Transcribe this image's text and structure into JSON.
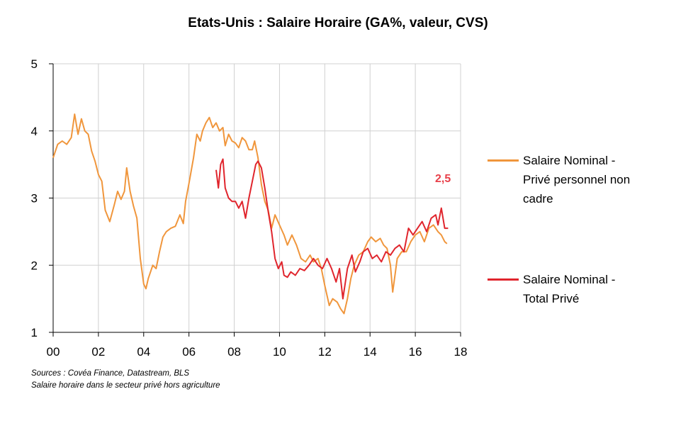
{
  "chart_data": {
    "type": "line",
    "title": "Etats-Unis : Salaire Horaire (GA%, valeur, CVS)",
    "xlabel": "",
    "ylabel": "",
    "xlim": [
      2000,
      2018
    ],
    "ylim": [
      1,
      5
    ],
    "x_ticks": [
      "00",
      "02",
      "04",
      "06",
      "08",
      "10",
      "12",
      "14",
      "16",
      "18"
    ],
    "y_ticks": [
      "1",
      "2",
      "3",
      "4",
      "5"
    ],
    "grid": true,
    "legend_position": "right",
    "annotation": {
      "text": "2,5",
      "color": "#e8404a"
    },
    "series": [
      {
        "name": "Salaire Nominal - Privé personnel non cadre",
        "color": "#f0963c",
        "points": [
          [
            2000.0,
            3.6
          ],
          [
            2000.2,
            3.8
          ],
          [
            2000.4,
            3.85
          ],
          [
            2000.6,
            3.8
          ],
          [
            2000.8,
            3.9
          ],
          [
            2000.95,
            4.25
          ],
          [
            2001.1,
            3.95
          ],
          [
            2001.25,
            4.18
          ],
          [
            2001.4,
            4.0
          ],
          [
            2001.55,
            3.95
          ],
          [
            2001.7,
            3.7
          ],
          [
            2001.85,
            3.55
          ],
          [
            2002.0,
            3.35
          ],
          [
            2002.15,
            3.25
          ],
          [
            2002.3,
            2.82
          ],
          [
            2002.5,
            2.65
          ],
          [
            2002.7,
            2.9
          ],
          [
            2002.85,
            3.1
          ],
          [
            2003.0,
            2.98
          ],
          [
            2003.15,
            3.1
          ],
          [
            2003.25,
            3.45
          ],
          [
            2003.4,
            3.1
          ],
          [
            2003.55,
            2.88
          ],
          [
            2003.7,
            2.7
          ],
          [
            2003.85,
            2.1
          ],
          [
            2004.0,
            1.72
          ],
          [
            2004.1,
            1.65
          ],
          [
            2004.2,
            1.8
          ],
          [
            2004.4,
            2.0
          ],
          [
            2004.55,
            1.95
          ],
          [
            2004.7,
            2.2
          ],
          [
            2004.85,
            2.42
          ],
          [
            2005.0,
            2.5
          ],
          [
            2005.2,
            2.55
          ],
          [
            2005.4,
            2.58
          ],
          [
            2005.6,
            2.75
          ],
          [
            2005.75,
            2.62
          ],
          [
            2005.85,
            2.95
          ],
          [
            2006.0,
            3.22
          ],
          [
            2006.2,
            3.6
          ],
          [
            2006.35,
            3.95
          ],
          [
            2006.5,
            3.85
          ],
          [
            2006.6,
            4.0
          ],
          [
            2006.75,
            4.12
          ],
          [
            2006.9,
            4.2
          ],
          [
            2007.05,
            4.05
          ],
          [
            2007.2,
            4.12
          ],
          [
            2007.35,
            4.0
          ],
          [
            2007.5,
            4.05
          ],
          [
            2007.6,
            3.78
          ],
          [
            2007.75,
            3.95
          ],
          [
            2007.9,
            3.85
          ],
          [
            2008.05,
            3.82
          ],
          [
            2008.2,
            3.75
          ],
          [
            2008.35,
            3.9
          ],
          [
            2008.5,
            3.85
          ],
          [
            2008.65,
            3.72
          ],
          [
            2008.8,
            3.72
          ],
          [
            2008.9,
            3.85
          ],
          [
            2009.05,
            3.6
          ],
          [
            2009.2,
            3.2
          ],
          [
            2009.35,
            2.95
          ],
          [
            2009.5,
            2.82
          ],
          [
            2009.65,
            2.55
          ],
          [
            2009.8,
            2.75
          ],
          [
            2010.0,
            2.6
          ],
          [
            2010.2,
            2.45
          ],
          [
            2010.35,
            2.3
          ],
          [
            2010.55,
            2.45
          ],
          [
            2010.75,
            2.3
          ],
          [
            2010.95,
            2.1
          ],
          [
            2011.15,
            2.05
          ],
          [
            2011.35,
            2.15
          ],
          [
            2011.5,
            2.05
          ],
          [
            2011.7,
            2.1
          ],
          [
            2011.85,
            1.95
          ],
          [
            2012.0,
            1.7
          ],
          [
            2012.2,
            1.4
          ],
          [
            2012.35,
            1.5
          ],
          [
            2012.55,
            1.45
          ],
          [
            2012.7,
            1.35
          ],
          [
            2012.85,
            1.28
          ],
          [
            2013.0,
            1.5
          ],
          [
            2013.15,
            1.8
          ],
          [
            2013.3,
            2.0
          ],
          [
            2013.5,
            2.15
          ],
          [
            2013.7,
            2.2
          ],
          [
            2013.9,
            2.35
          ],
          [
            2014.05,
            2.42
          ],
          [
            2014.25,
            2.35
          ],
          [
            2014.45,
            2.4
          ],
          [
            2014.6,
            2.3
          ],
          [
            2014.75,
            2.25
          ],
          [
            2014.9,
            2.0
          ],
          [
            2015.0,
            1.6
          ],
          [
            2015.2,
            2.1
          ],
          [
            2015.4,
            2.2
          ],
          [
            2015.6,
            2.2
          ],
          [
            2015.8,
            2.35
          ],
          [
            2016.0,
            2.45
          ],
          [
            2016.2,
            2.5
          ],
          [
            2016.4,
            2.35
          ],
          [
            2016.6,
            2.55
          ],
          [
            2016.8,
            2.6
          ],
          [
            2017.0,
            2.5
          ],
          [
            2017.15,
            2.45
          ],
          [
            2017.3,
            2.35
          ],
          [
            2017.4,
            2.32
          ]
        ]
      },
      {
        "name": "Salaire Nominal - Total Privé",
        "color": "#e0252d",
        "points": [
          [
            2007.2,
            3.42
          ],
          [
            2007.3,
            3.15
          ],
          [
            2007.4,
            3.5
          ],
          [
            2007.5,
            3.58
          ],
          [
            2007.6,
            3.15
          ],
          [
            2007.75,
            3.0
          ],
          [
            2007.9,
            2.95
          ],
          [
            2008.05,
            2.95
          ],
          [
            2008.2,
            2.85
          ],
          [
            2008.35,
            2.95
          ],
          [
            2008.5,
            2.7
          ],
          [
            2008.65,
            3.0
          ],
          [
            2008.8,
            3.25
          ],
          [
            2008.95,
            3.5
          ],
          [
            2009.05,
            3.55
          ],
          [
            2009.2,
            3.45
          ],
          [
            2009.35,
            3.15
          ],
          [
            2009.5,
            2.8
          ],
          [
            2009.65,
            2.5
          ],
          [
            2009.8,
            2.1
          ],
          [
            2009.95,
            1.95
          ],
          [
            2010.1,
            2.05
          ],
          [
            2010.2,
            1.85
          ],
          [
            2010.35,
            1.82
          ],
          [
            2010.5,
            1.9
          ],
          [
            2010.7,
            1.85
          ],
          [
            2010.9,
            1.95
          ],
          [
            2011.1,
            1.92
          ],
          [
            2011.3,
            2.0
          ],
          [
            2011.5,
            2.1
          ],
          [
            2011.7,
            2.0
          ],
          [
            2011.9,
            1.95
          ],
          [
            2012.1,
            2.1
          ],
          [
            2012.3,
            1.95
          ],
          [
            2012.5,
            1.75
          ],
          [
            2012.65,
            1.95
          ],
          [
            2012.8,
            1.5
          ],
          [
            2013.0,
            1.95
          ],
          [
            2013.2,
            2.15
          ],
          [
            2013.35,
            1.9
          ],
          [
            2013.55,
            2.05
          ],
          [
            2013.7,
            2.2
          ],
          [
            2013.9,
            2.25
          ],
          [
            2014.1,
            2.1
          ],
          [
            2014.3,
            2.15
          ],
          [
            2014.5,
            2.05
          ],
          [
            2014.7,
            2.2
          ],
          [
            2014.9,
            2.15
          ],
          [
            2015.1,
            2.25
          ],
          [
            2015.3,
            2.3
          ],
          [
            2015.5,
            2.2
          ],
          [
            2015.7,
            2.55
          ],
          [
            2015.9,
            2.45
          ],
          [
            2016.1,
            2.55
          ],
          [
            2016.3,
            2.65
          ],
          [
            2016.5,
            2.5
          ],
          [
            2016.7,
            2.7
          ],
          [
            2016.9,
            2.75
          ],
          [
            2017.0,
            2.6
          ],
          [
            2017.15,
            2.85
          ],
          [
            2017.3,
            2.55
          ],
          [
            2017.45,
            2.55
          ]
        ]
      }
    ]
  },
  "sources": {
    "line1": "Sources : Covéa Finance, Datastream, BLS",
    "line2": "Salaire horaire dans le secteur privé hors agriculture"
  },
  "legend": {
    "item1": {
      "line1": "Salaire Nominal -",
      "line2": "Privé personnel non",
      "line3": "cadre"
    },
    "item2": {
      "line1": "Salaire Nominal -",
      "line2": "Total Privé"
    }
  }
}
